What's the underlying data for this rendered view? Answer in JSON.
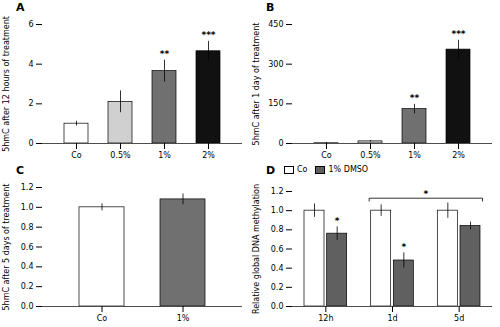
{
  "chart_data": [
    {
      "type": "bar",
      "title": "A",
      "categories": [
        "Co",
        "0.5%",
        "1%",
        "2%"
      ],
      "values": [
        1.0,
        2.1,
        3.65,
        4.65
      ],
      "errors": [
        0.12,
        0.55,
        0.55,
        0.5
      ],
      "colors": [
        "white",
        "#d0d0d0",
        "#707070",
        "#111111"
      ],
      "ylabel": "5hmC after 12 hours of treatment",
      "ylim": [
        0,
        6
      ],
      "yticks": [
        0,
        2,
        4,
        6
      ],
      "annotations": [
        {
          "category": "1%",
          "text": "**"
        },
        {
          "category": "2%",
          "text": "***"
        }
      ]
    },
    {
      "type": "bar",
      "title": "B",
      "categories": [
        "Co",
        "0.5%",
        "1%",
        "2%"
      ],
      "values": [
        1.0,
        8.0,
        130.0,
        355.0
      ],
      "errors": [
        3.0,
        3.0,
        18.0,
        35.0
      ],
      "colors": [
        "white",
        "#d0d0d0",
        "#707070",
        "#111111"
      ],
      "ylabel": "5hmC after 1 day of treatment",
      "ylim": [
        0,
        450
      ],
      "yticks": [
        0,
        150,
        300,
        450
      ],
      "annotations": [
        {
          "category": "1%",
          "text": "**"
        },
        {
          "category": "2%",
          "text": "***"
        }
      ]
    },
    {
      "type": "bar",
      "title": "C",
      "categories": [
        "Co",
        "1%"
      ],
      "values": [
        1.0,
        1.08
      ],
      "errors": [
        0.035,
        0.055
      ],
      "colors": [
        "white",
        "#707070"
      ],
      "ylabel": "5hmC after 5 days of treatment",
      "ylim": [
        0,
        1.2
      ],
      "yticks": [
        {
          "value": 0,
          "label": "0.0"
        },
        0.2,
        0.4,
        0.6,
        0.8,
        {
          "value": 1,
          "label": "1.0"
        },
        1.2
      ]
    },
    {
      "type": "bar",
      "title": "D",
      "categories": [
        "12h",
        "1d",
        "5d"
      ],
      "series": [
        {
          "name": "Co",
          "color": "white",
          "values": [
            1.0,
            1.0,
            1.0
          ],
          "errors": [
            0.07,
            0.06,
            0.08
          ]
        },
        {
          "name": "1% DMSO",
          "color": "#606060",
          "values": [
            0.76,
            0.48,
            0.84
          ],
          "errors": [
            0.07,
            0.08,
            0.04
          ]
        }
      ],
      "ylabel": "Relative global DNA methylation",
      "ylim": [
        0,
        1.2
      ],
      "yticks": [
        {
          "value": 0,
          "label": "0.0"
        },
        0.2,
        0.4,
        0.6,
        0.8,
        {
          "value": 1,
          "label": "1.0"
        },
        1.2
      ],
      "legend": "upper left",
      "annotations": [
        {
          "category": "12h",
          "series": "1% DMSO",
          "text": "*"
        },
        {
          "category": "1d",
          "series": "1% DMSO",
          "text": "*"
        },
        {
          "from": "1d",
          "to": "5d",
          "y": 1.13,
          "text": "*"
        }
      ]
    }
  ]
}
